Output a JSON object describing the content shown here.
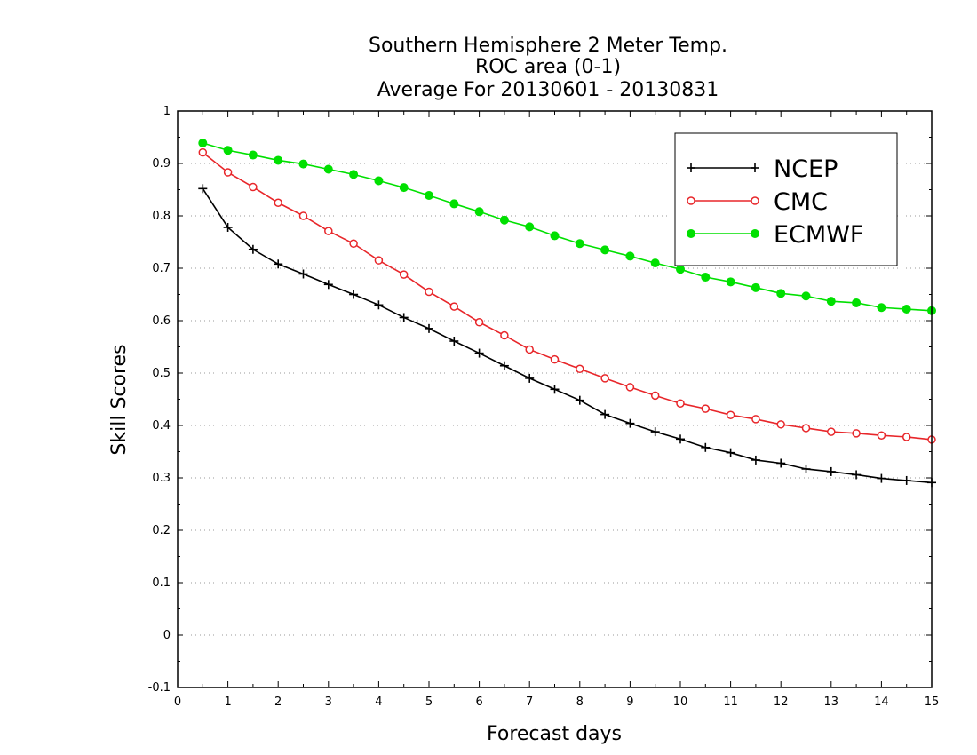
{
  "chart_data": {
    "type": "line",
    "title_lines": [
      "Southern Hemisphere 2 Meter Temp.",
      "ROC area (0-1)",
      "Average For 20130601 - 20130831"
    ],
    "xlabel": "Forecast days",
    "ylabel": "Skill Scores",
    "xlim": [
      0,
      15
    ],
    "ylim": [
      -0.1,
      1
    ],
    "xticks": [
      "0",
      "1",
      "2",
      "3",
      "4",
      "5",
      "6",
      "7",
      "8",
      "9",
      "10",
      "11",
      "12",
      "13",
      "14",
      "15"
    ],
    "yticks": [
      "-0.1",
      "0",
      "0.1",
      "0.2",
      "0.3",
      "0.4",
      "0.5",
      "0.6",
      "0.7",
      "0.8",
      "0.9",
      "1"
    ],
    "grid": "horizontal-dotted",
    "legend_position": "top-right",
    "x": [
      0.5,
      1,
      1.5,
      2,
      2.5,
      3,
      3.5,
      4,
      4.5,
      5,
      5.5,
      6,
      6.5,
      7,
      7.5,
      8,
      8.5,
      9,
      9.5,
      10,
      10.5,
      11,
      11.5,
      12,
      12.5,
      13,
      13.5,
      14,
      14.5,
      15
    ],
    "series": [
      {
        "name": "NCEP",
        "color": "#000000",
        "marker": "plus",
        "values": [
          0.852,
          0.778,
          0.736,
          0.708,
          0.689,
          0.669,
          0.65,
          0.63,
          0.606,
          0.585,
          0.561,
          0.538,
          0.514,
          0.49,
          0.469,
          0.448,
          0.421,
          0.404,
          0.388,
          0.374,
          0.358,
          0.348,
          0.334,
          0.328,
          0.317,
          0.312,
          0.306,
          0.299,
          0.295,
          0.291
        ]
      },
      {
        "name": "CMC",
        "color": "#e8262a",
        "marker": "open-circle",
        "values": [
          0.921,
          0.883,
          0.855,
          0.825,
          0.8,
          0.771,
          0.747,
          0.715,
          0.688,
          0.655,
          0.627,
          0.597,
          0.572,
          0.545,
          0.526,
          0.508,
          0.49,
          0.473,
          0.457,
          0.442,
          0.432,
          0.42,
          0.412,
          0.402,
          0.395,
          0.388,
          0.385,
          0.381,
          0.378,
          0.373
        ]
      },
      {
        "name": "ECMWF",
        "color": "#00e000",
        "marker": "filled-circle",
        "values": [
          0.939,
          0.925,
          0.916,
          0.906,
          0.899,
          0.889,
          0.879,
          0.867,
          0.854,
          0.839,
          0.823,
          0.808,
          0.792,
          0.779,
          0.762,
          0.747,
          0.735,
          0.723,
          0.71,
          0.698,
          0.683,
          0.674,
          0.663,
          0.652,
          0.647,
          0.637,
          0.634,
          0.625,
          0.622,
          0.619
        ]
      }
    ]
  }
}
